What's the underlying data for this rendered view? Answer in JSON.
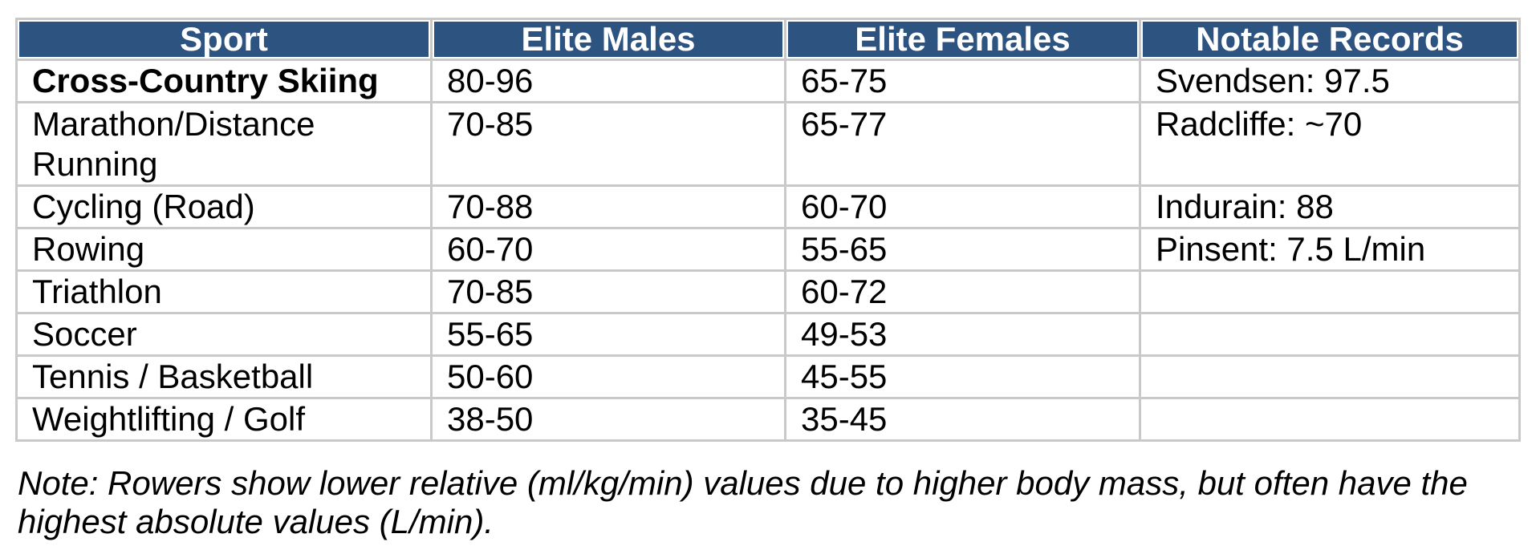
{
  "colors": {
    "header_bg": "#2D5381",
    "header_text": "#FFFFFF",
    "grid_border": "#C9C9C9",
    "body_text": "#000000",
    "page_bg": "#FFFFFF"
  },
  "chart_data": {
    "type": "table",
    "title": "",
    "columns": [
      "Sport",
      "Elite Males",
      "Elite Females",
      "Notable Records"
    ],
    "rows": [
      {
        "sport": "Cross-Country Skiing",
        "elite_males": "80-96",
        "elite_females": "65-75",
        "notable_record": "Svendsen: 97.5"
      },
      {
        "sport": "Marathon/Distance Running",
        "elite_males": "70-85",
        "elite_females": "65-77",
        "notable_record": "Radcliffe: ~70"
      },
      {
        "sport": "Cycling (Road)",
        "elite_males": "70-88",
        "elite_females": "60-70",
        "notable_record": "Indurain: 88"
      },
      {
        "sport": "Rowing",
        "elite_males": "60-70",
        "elite_females": "55-65",
        "notable_record": "Pinsent: 7.5 L/min"
      },
      {
        "sport": "Triathlon",
        "elite_males": "70-85",
        "elite_females": "60-72",
        "notable_record": ""
      },
      {
        "sport": "Soccer",
        "elite_males": "55-65",
        "elite_females": "49-53",
        "notable_record": ""
      },
      {
        "sport": "Tennis / Basketball",
        "elite_males": "50-60",
        "elite_females": "45-55",
        "notable_record": ""
      },
      {
        "sport": "Weightlifting / Golf",
        "elite_males": "38-50",
        "elite_females": "35-45",
        "notable_record": ""
      }
    ]
  },
  "note": {
    "line1": "Note: Rowers show lower relative (ml/kg/min) values due to higher body mass, but often have the",
    "line2": "highest absolute values (L/min)."
  }
}
